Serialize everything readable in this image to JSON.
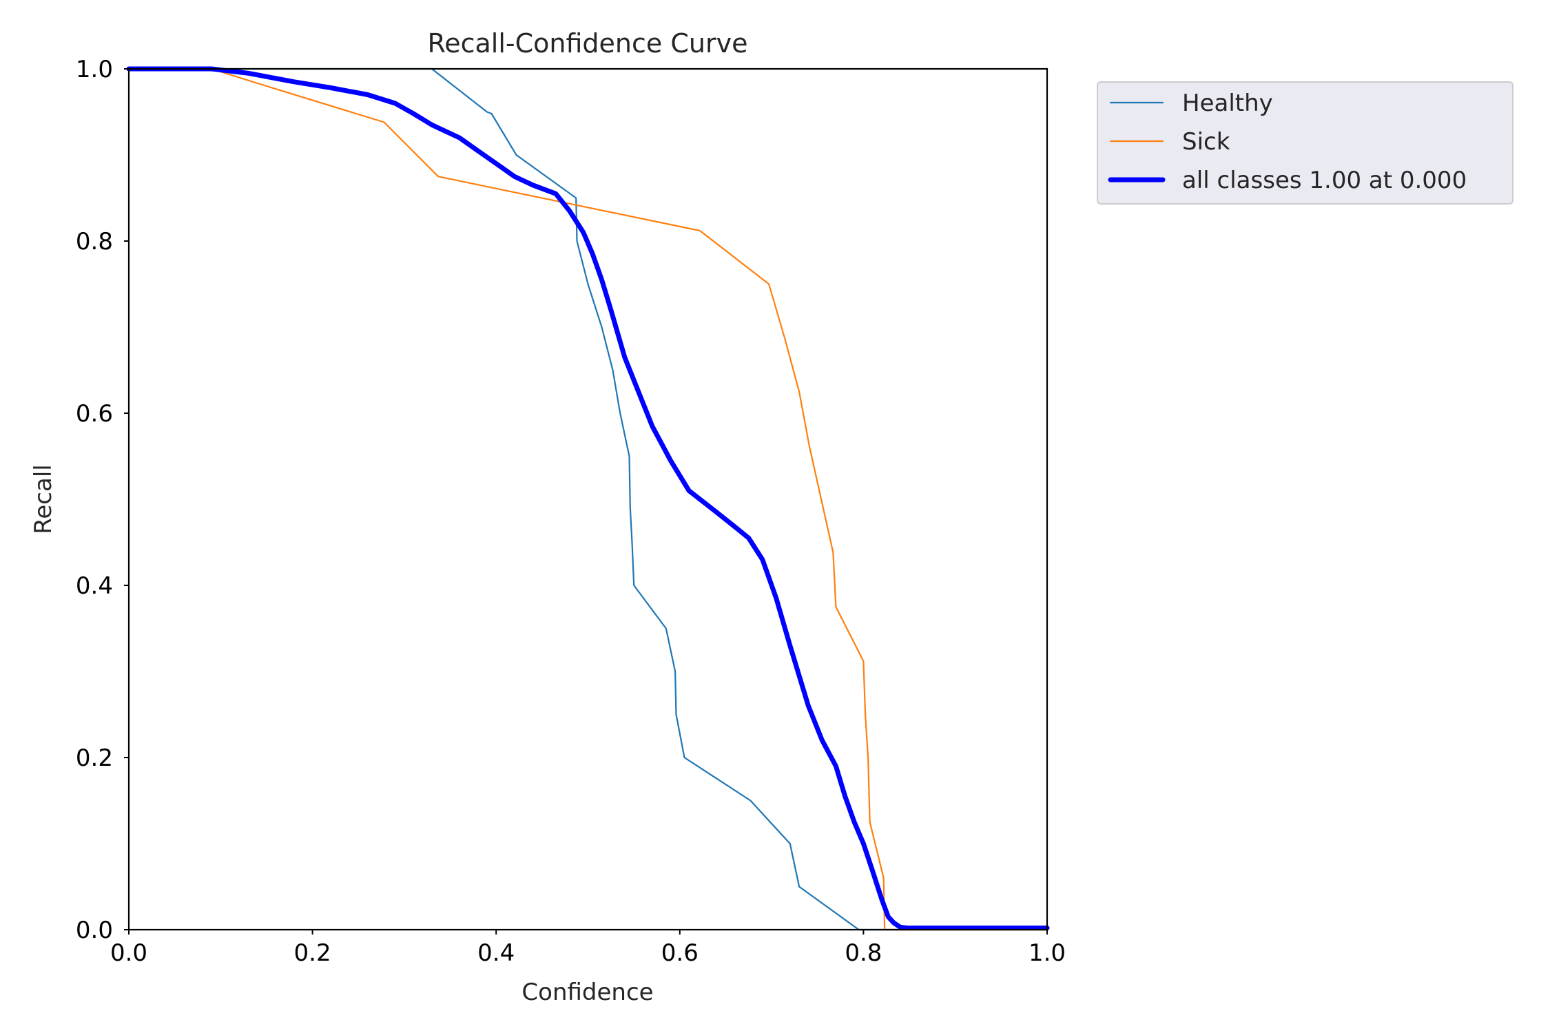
{
  "chart_data": {
    "type": "line",
    "title": "Recall-Confidence Curve",
    "xlabel": "Confidence",
    "ylabel": "Recall",
    "xlim": [
      0.0,
      1.0
    ],
    "ylim": [
      0.0,
      1.0
    ],
    "x_ticks": [
      "0.0",
      "0.2",
      "0.4",
      "0.6",
      "0.8",
      "1.0"
    ],
    "y_ticks": [
      "0.0",
      "0.2",
      "0.4",
      "0.6",
      "0.8",
      "1.0"
    ],
    "grid": false,
    "legend_position": "outside-upper-right",
    "series": [
      {
        "name": "Healthy",
        "color": "#1f77b4",
        "line": "thin",
        "x": [
          0.0,
          0.33,
          0.39,
          0.395,
          0.422,
          0.487,
          0.488,
          0.5,
          0.515,
          0.527,
          0.535,
          0.545,
          0.546,
          0.548,
          0.55,
          0.585,
          0.595,
          0.596,
          0.605,
          0.677,
          0.72,
          0.73,
          0.795,
          1.0
        ],
        "y": [
          1.0,
          1.0,
          0.95,
          0.948,
          0.9,
          0.85,
          0.8,
          0.75,
          0.7,
          0.65,
          0.6,
          0.55,
          0.49,
          0.45,
          0.4,
          0.35,
          0.3,
          0.25,
          0.2,
          0.15,
          0.1,
          0.05,
          0.0,
          0.0
        ]
      },
      {
        "name": "Sick",
        "color": "#ff7f0e",
        "line": "thin",
        "x": [
          0.0,
          0.09,
          0.15,
          0.278,
          0.337,
          0.622,
          0.697,
          0.714,
          0.73,
          0.741,
          0.754,
          0.767,
          0.77,
          0.8,
          0.802,
          0.805,
          0.807,
          0.822,
          0.823,
          1.0
        ],
        "y": [
          1.0,
          1.0,
          0.98,
          0.938,
          0.875,
          0.812,
          0.75,
          0.688,
          0.625,
          0.562,
          0.5,
          0.438,
          0.375,
          0.312,
          0.25,
          0.2,
          0.125,
          0.06,
          0.0,
          0.0
        ]
      },
      {
        "name": "all classes 1.00 at 0.000",
        "color": "#0000ff",
        "line": "thick",
        "x": [
          0.0,
          0.09,
          0.13,
          0.18,
          0.22,
          0.26,
          0.29,
          0.31,
          0.33,
          0.36,
          0.38,
          0.4,
          0.42,
          0.44,
          0.465,
          0.48,
          0.495,
          0.505,
          0.515,
          0.525,
          0.54,
          0.555,
          0.57,
          0.59,
          0.61,
          0.622,
          0.64,
          0.66,
          0.675,
          0.69,
          0.705,
          0.72,
          0.74,
          0.755,
          0.77,
          0.78,
          0.79,
          0.8,
          0.81,
          0.82,
          0.827,
          0.833,
          0.84,
          0.848,
          0.86,
          1.0
        ],
        "y": [
          1.0,
          1.0,
          0.995,
          0.985,
          0.978,
          0.97,
          0.96,
          0.948,
          0.935,
          0.92,
          0.905,
          0.89,
          0.875,
          0.865,
          0.855,
          0.835,
          0.81,
          0.785,
          0.755,
          0.72,
          0.665,
          0.625,
          0.585,
          0.545,
          0.51,
          0.5,
          0.485,
          0.468,
          0.455,
          0.43,
          0.385,
          0.33,
          0.26,
          0.22,
          0.19,
          0.155,
          0.125,
          0.1,
          0.068,
          0.035,
          0.015,
          0.008,
          0.003,
          0.002,
          0.002,
          0.002
        ]
      }
    ]
  }
}
